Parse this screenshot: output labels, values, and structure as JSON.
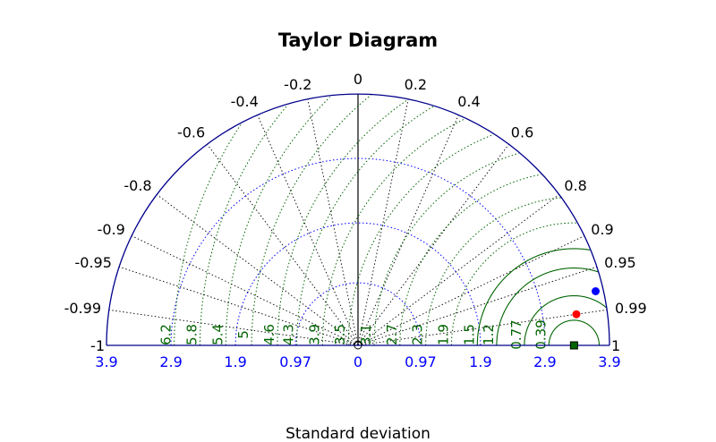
{
  "chart_data": {
    "type": "taylor",
    "title": "Taylor Diagram",
    "xlabel": "Standard deviation",
    "colors": {
      "frame": "#00008b",
      "std_contours": "#0000ff",
      "rms_contours": "#006400",
      "correlation_lines": "#000000",
      "reference": "#006400"
    },
    "std_max": 3.9,
    "std_contours": [
      0.97,
      1.9,
      2.9
    ],
    "std_tick_labels": [
      "3.9",
      "2.9",
      "1.9",
      "0.97",
      "0",
      "0.97",
      "1.9",
      "2.9",
      "3.9"
    ],
    "correlation_ticks": [
      {
        "value": -1,
        "label": "-1"
      },
      {
        "value": -0.99,
        "label": "-0.99"
      },
      {
        "value": -0.95,
        "label": "-0.95"
      },
      {
        "value": -0.9,
        "label": "-0.9"
      },
      {
        "value": -0.8,
        "label": "-0.8"
      },
      {
        "value": -0.6,
        "label": "-0.6"
      },
      {
        "value": -0.4,
        "label": "-0.4"
      },
      {
        "value": -0.2,
        "label": "-0.2"
      },
      {
        "value": 0,
        "label": "0"
      },
      {
        "value": 0.2,
        "label": "0.2"
      },
      {
        "value": 0.4,
        "label": "0.4"
      },
      {
        "value": 0.6,
        "label": "0.6"
      },
      {
        "value": 0.8,
        "label": "0.8"
      },
      {
        "value": 0.9,
        "label": "0.9"
      },
      {
        "value": 0.95,
        "label": "0.95"
      },
      {
        "value": 0.99,
        "label": "0.99"
      },
      {
        "value": 1,
        "label": "1"
      }
    ],
    "reference": {
      "std": 3.35,
      "correlation": 1
    },
    "rms_contours": [
      {
        "value": 0.39,
        "label": "0.39"
      },
      {
        "value": 0.77,
        "label": "0.77"
      },
      {
        "value": 1.2,
        "label": "1.2"
      },
      {
        "value": 1.5,
        "label": "1.5"
      },
      {
        "value": 1.9,
        "label": "1.9"
      },
      {
        "value": 2.3,
        "label": "2.3"
      },
      {
        "value": 2.7,
        "label": "2.7"
      },
      {
        "value": 3.1,
        "label": "3.1"
      },
      {
        "value": 3.5,
        "label": "3.5"
      },
      {
        "value": 3.9,
        "label": "3.9"
      },
      {
        "value": 4.3,
        "label": "4.3"
      },
      {
        "value": 4.6,
        "label": "4.6"
      },
      {
        "value": 5,
        "label": "5"
      },
      {
        "value": 5.4,
        "label": "5.4"
      },
      {
        "value": 5.8,
        "label": "5.8"
      },
      {
        "value": 6.2,
        "label": "6.2"
      }
    ],
    "points": [
      {
        "std": 3.42,
        "correlation": 0.99,
        "color": "#ff0000"
      },
      {
        "std": 3.78,
        "correlation": 0.975,
        "color": "#0000ff"
      }
    ]
  }
}
